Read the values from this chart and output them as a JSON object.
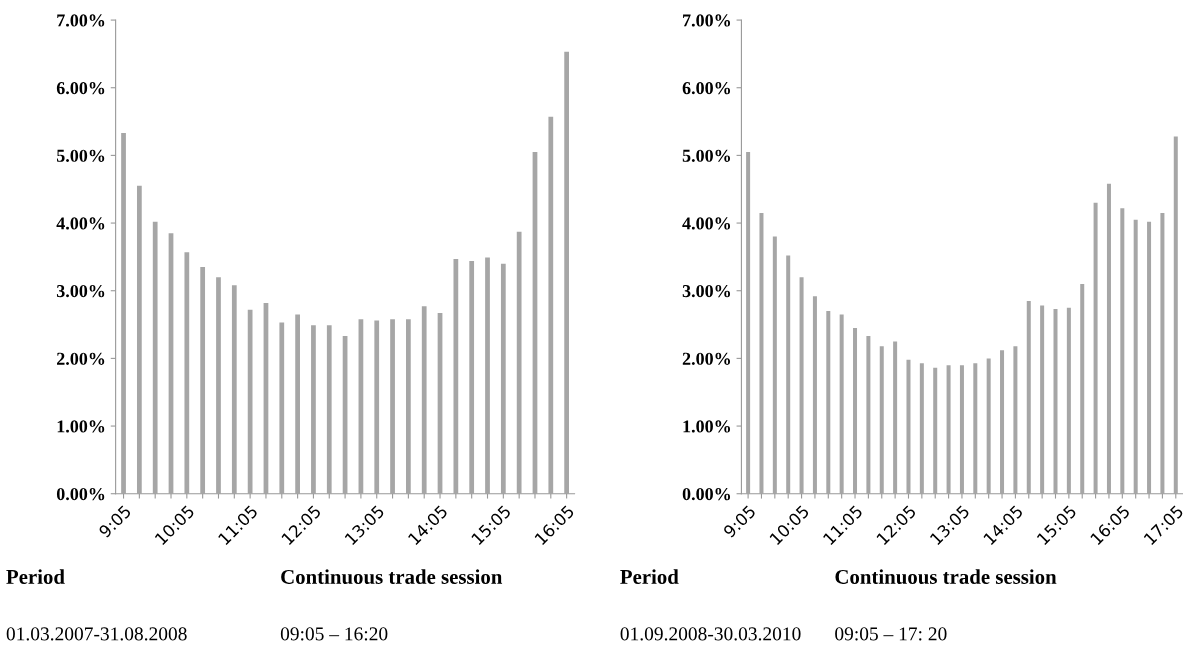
{
  "chart_data": [
    {
      "type": "bar",
      "categories": [
        "9:05",
        null,
        null,
        null,
        "10:05",
        null,
        null,
        null,
        "11:05",
        null,
        null,
        null,
        "12:05",
        null,
        null,
        null,
        "13:05",
        null,
        null,
        null,
        "14:05",
        null,
        null,
        null,
        "15:05",
        null,
        null,
        null,
        "16:05"
      ],
      "values": [
        5.33,
        4.55,
        4.02,
        3.85,
        3.57,
        3.35,
        3.2,
        3.08,
        2.72,
        2.82,
        2.53,
        2.65,
        2.49,
        2.49,
        2.33,
        2.58,
        2.56,
        2.58,
        2.58,
        2.77,
        2.67,
        3.47,
        3.44,
        3.49,
        3.4,
        3.87,
        5.05,
        5.57,
        6.53
      ],
      "color": "#a6a6a6",
      "ylim": [
        0,
        7
      ],
      "yticks": [
        {
          "value": 0,
          "label": "0.00%"
        },
        {
          "value": 1,
          "label": "1.00%"
        },
        {
          "value": 2,
          "label": "2.00%"
        },
        {
          "value": 3,
          "label": "3.00%"
        },
        {
          "value": 4,
          "label": "4.00%"
        },
        {
          "value": 5,
          "label": "5.00%"
        },
        {
          "value": 6,
          "label": "6.00%"
        },
        {
          "value": 7,
          "label": "7.00%"
        }
      ],
      "annotations": [
        "Period",
        "Continuous trade session",
        "01.03.2007-31.08.2008",
        "09:05 – 16:20"
      ]
    },
    {
      "type": "bar",
      "categories": [
        "9:05",
        null,
        null,
        null,
        "10:05",
        null,
        null,
        null,
        "11:05",
        null,
        null,
        null,
        "12:05",
        null,
        null,
        null,
        "13:05",
        null,
        null,
        null,
        "14:05",
        null,
        null,
        null,
        "15:05",
        null,
        null,
        null,
        "16:05",
        null,
        null,
        null,
        "17:05"
      ],
      "values": [
        5.05,
        4.15,
        3.8,
        3.52,
        3.2,
        2.92,
        2.7,
        2.65,
        2.45,
        2.33,
        2.18,
        2.25,
        1.98,
        1.93,
        1.86,
        1.9,
        1.9,
        1.93,
        2.0,
        2.12,
        2.18,
        2.85,
        2.78,
        2.73,
        2.75,
        3.1,
        4.3,
        4.58,
        4.22,
        4.05,
        4.02,
        4.15,
        5.28
      ],
      "color": "#a6a6a6",
      "ylim": [
        0,
        7
      ],
      "yticks": [
        {
          "value": 0,
          "label": "0.00%"
        },
        {
          "value": 1,
          "label": "1.00%"
        },
        {
          "value": 2,
          "label": "2.00%"
        },
        {
          "value": 3,
          "label": "3.00%"
        },
        {
          "value": 4,
          "label": "4.00%"
        },
        {
          "value": 5,
          "label": "5.00%"
        },
        {
          "value": 6,
          "label": "6.00%"
        },
        {
          "value": 7,
          "label": "7.00%"
        }
      ],
      "annotations": [
        "Period",
        "Continuous trade session",
        "01.09.2008-30.03.2010",
        "09:05 – 17: 20"
      ]
    }
  ]
}
